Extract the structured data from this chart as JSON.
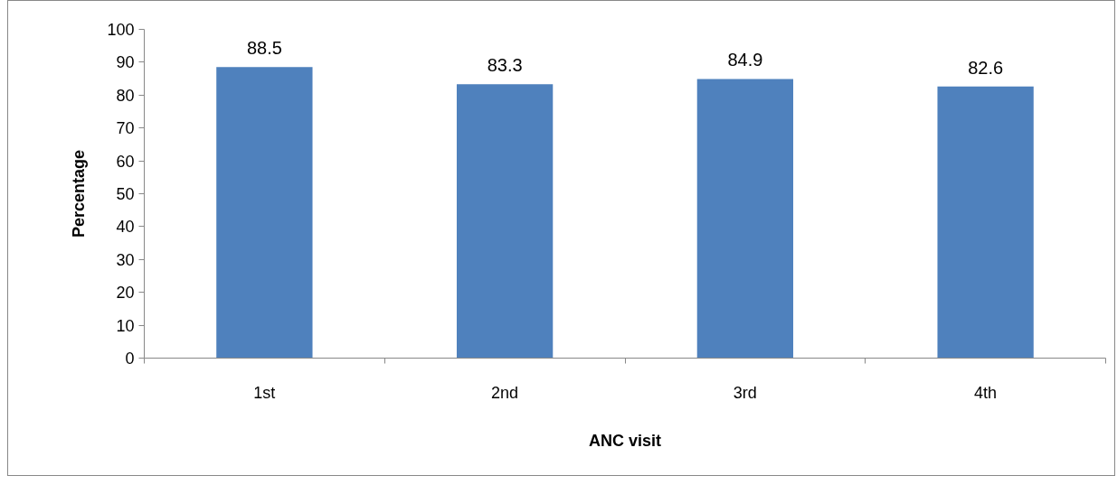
{
  "chart_data": {
    "type": "bar",
    "xlabel": "ANC visit",
    "ylabel": "Percentage",
    "categories": [
      "1st",
      "2nd",
      "3rd",
      "4th"
    ],
    "values": [
      88.5,
      83.3,
      84.9,
      82.6
    ],
    "color": "#4f81bd",
    "ylim": [
      0,
      100
    ],
    "yticks": [
      0,
      10,
      20,
      30,
      40,
      50,
      60,
      70,
      80,
      90,
      100
    ],
    "data_labels": true,
    "grid": false
  }
}
